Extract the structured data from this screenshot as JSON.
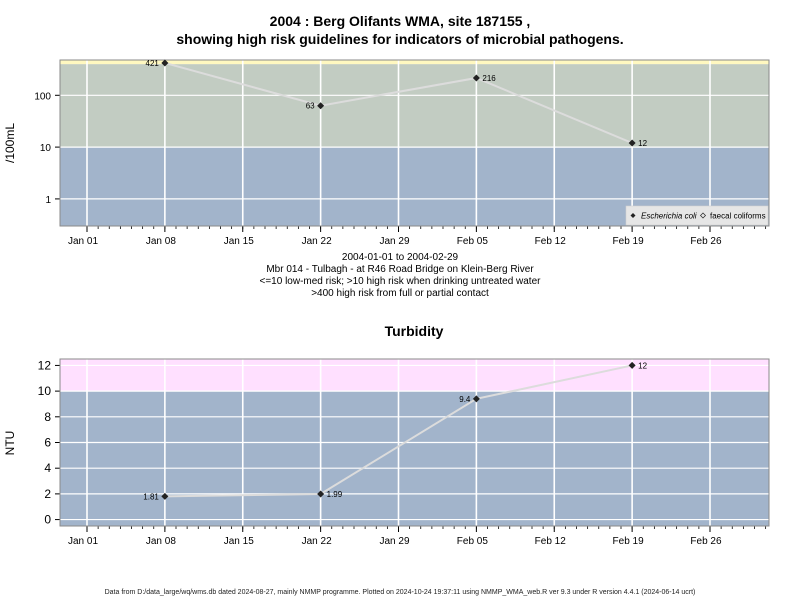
{
  "header": {
    "title_line1": "2004 : Berg Olifants WMA, site 187155 ,",
    "title_line2": "showing high risk guidelines for indicators of microbial pathogens."
  },
  "caption": {
    "date_range": "2004-01-01 to 2004-02-29",
    "station": "Mbr 014 - Tulbagh - at R46 Road Bridge on Klein-Berg River",
    "guideline_1": "<=10 low-med risk; >10 high risk when drinking untreated water",
    "guideline_2": ">400 high risk from full or partial contact"
  },
  "footer": {
    "credit": "Data from D:/data_large/wq/wms.db dated 2024-08-27, mainly NMMP programme. Plotted on 2024-10-24 19:37:11 using NMMP_WMA_web.R ver 9.3 under R version 4.4.1 (2024-06-14 ucrt)"
  },
  "colors": {
    "panel_low": "#a2b4cb",
    "panel_high": "#c2ccc2",
    "band_top": "#fff8c0",
    "band_turb": "#ffe0ff",
    "grid": "#ffffff",
    "series_line": "#dcdcdc",
    "marker": "#222222"
  },
  "chart_data": [
    {
      "type": "line",
      "title": "",
      "xlabel": "",
      "ylabel": "/100mL",
      "y_scale": "log",
      "ylim": [
        0.3,
        480
      ],
      "x_ticks": [
        "Jan 01",
        "Jan 08",
        "Jan 15",
        "Jan 22",
        "Jan 29",
        "Feb 05",
        "Feb 12",
        "Feb 19",
        "Feb 26"
      ],
      "y_ticks": [
        "1",
        "10",
        "100"
      ],
      "y_tick_values": [
        1,
        10,
        100
      ],
      "guideline_bands": [
        {
          "from": 0.3,
          "to": 10,
          "color": "#a2b4cb"
        },
        {
          "from": 10,
          "to": 400,
          "color": "#c2ccc2"
        },
        {
          "from": 400,
          "to": 480,
          "color": "#fff8c0"
        }
      ],
      "grid": true,
      "legend_position": "bottom-right",
      "legend": [
        {
          "label": "Escherichia coli",
          "marker": "filled-diamond",
          "italic": true
        },
        {
          "label": "faecal coliforms",
          "marker": "open-diamond",
          "italic": false
        }
      ],
      "series": [
        {
          "name": "Escherichia coli",
          "x": [
            "2004-01-08",
            "2004-01-22",
            "2004-02-05",
            "2004-02-19"
          ],
          "y": [
            421,
            63,
            216,
            12
          ],
          "labels": [
            "421",
            "63",
            "216",
            "12"
          ],
          "label_side": [
            "left",
            "left",
            "right",
            "right"
          ]
        }
      ]
    },
    {
      "type": "line",
      "title": "Turbidity",
      "xlabel": "",
      "ylabel": "NTU",
      "y_scale": "linear",
      "ylim": [
        -0.5,
        12.5
      ],
      "x_ticks": [
        "Jan 01",
        "Jan 08",
        "Jan 15",
        "Jan 22",
        "Jan 29",
        "Feb 05",
        "Feb 12",
        "Feb 19",
        "Feb 26"
      ],
      "y_ticks": [
        "0",
        "2",
        "4",
        "6",
        "8",
        "10",
        "12"
      ],
      "y_tick_values": [
        0,
        2,
        4,
        6,
        8,
        10,
        12
      ],
      "guideline_bands": [
        {
          "from": -0.5,
          "to": 10,
          "color": "#a2b4cb"
        },
        {
          "from": 10,
          "to": 12.5,
          "color": "#ffe0ff"
        }
      ],
      "grid": true,
      "series": [
        {
          "x": [
            "2004-01-08",
            "2004-01-22",
            "2004-02-05",
            "2004-02-19"
          ],
          "y": [
            1.81,
            1.99,
            9.4,
            12
          ],
          "labels": [
            "1.81",
            "1.99",
            "9.4",
            "12"
          ],
          "label_side": [
            "left",
            "right",
            "left",
            "right"
          ]
        }
      ]
    }
  ]
}
